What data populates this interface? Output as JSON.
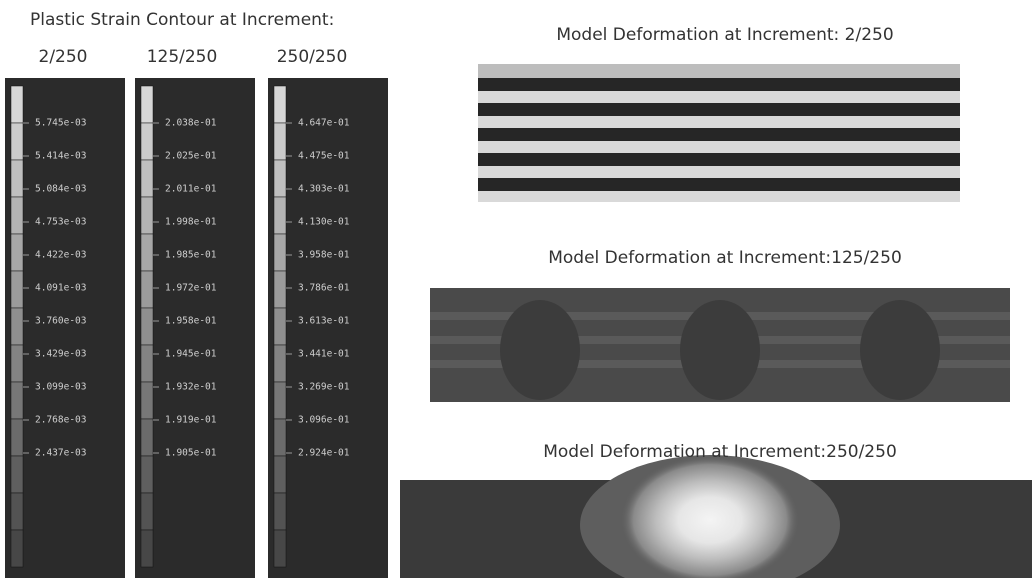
{
  "header": {
    "title": "Plastic Strain Contour at Increment:"
  },
  "legends": [
    {
      "increment": "2/250",
      "labels": [
        "5.745e-03",
        "5.414e-03",
        "5.084e-03",
        "4.753e-03",
        "4.422e-03",
        "4.091e-03",
        "3.760e-03",
        "3.429e-03",
        "3.099e-03",
        "2.768e-03",
        "2.437e-03"
      ]
    },
    {
      "increment": "125/250",
      "labels": [
        "2.038e-01",
        "2.025e-01",
        "2.011e-01",
        "1.998e-01",
        "1.985e-01",
        "1.972e-01",
        "1.958e-01",
        "1.945e-01",
        "1.932e-01",
        "1.919e-01",
        "1.905e-01"
      ]
    },
    {
      "increment": "250/250",
      "labels": [
        "4.647e-01",
        "4.475e-01",
        "4.303e-01",
        "4.130e-01",
        "3.958e-01",
        "3.786e-01",
        "3.613e-01",
        "3.441e-01",
        "3.269e-01",
        "3.096e-01",
        "2.924e-01"
      ]
    }
  ],
  "models": [
    {
      "title": "Model Deformation at Increment: 2/250"
    },
    {
      "title": "Model Deformation at Increment:125/250"
    },
    {
      "title": "Model Deformation at Increment:250/250"
    }
  ]
}
